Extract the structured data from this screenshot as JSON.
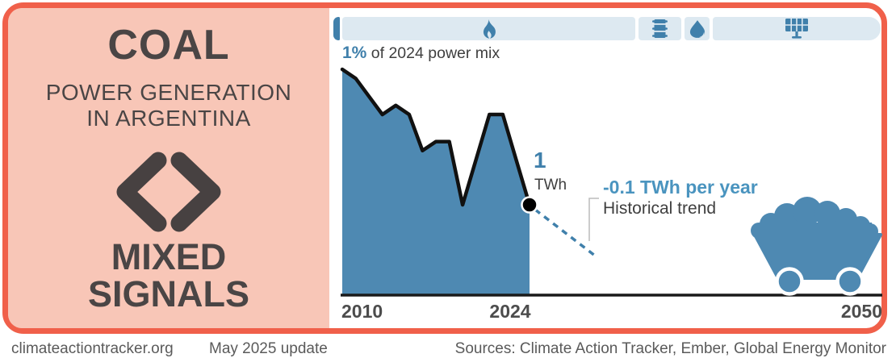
{
  "colors": {
    "brand-orange": "#f0604a",
    "panel-pink": "#f8c6b7",
    "chart-blue": "#4e89b2",
    "accent-blue": "#4080ab",
    "pill-blue": "#dde9f1",
    "trend-blue": "#4a94bf"
  },
  "panel": {
    "title": "COAL",
    "subtitle_line1": "POWER GENERATION",
    "subtitle_line2": "IN ARGENTINA",
    "rating_line1": "MIXED",
    "rating_line2": "SIGNALS"
  },
  "mix_bar": {
    "segments": [
      {
        "id": "coal",
        "icon": "none",
        "highlighted": true
      },
      {
        "id": "fossil-gas",
        "icon": "flame-icon",
        "highlighted": false
      },
      {
        "id": "oil",
        "icon": "oil-barrel-icon",
        "highlighted": false
      },
      {
        "id": "hydro",
        "icon": "water-drop-icon",
        "highlighted": false
      },
      {
        "id": "renewables",
        "icon": "solar-panel-icon",
        "highlighted": false
      }
    ]
  },
  "chart": {
    "share_value": "1%",
    "share_label": " of 2024 power mix",
    "point_value": "1",
    "point_unit": "TWh",
    "trend_rate": "-0.1 TWh per year",
    "trend_name": "Historical trend"
  },
  "chart_data": {
    "type": "area",
    "title": "Coal power generation in Argentina",
    "ylabel": "TWh",
    "x": [
      2010,
      2011,
      2012,
      2013,
      2014,
      2015,
      2016,
      2017,
      2018,
      2019,
      2020,
      2021,
      2022,
      2023,
      2024
    ],
    "values": [
      2.5,
      2.4,
      2.2,
      2.0,
      2.1,
      2.0,
      1.6,
      1.7,
      1.7,
      1.0,
      1.5,
      2.0,
      2.0,
      1.5,
      1.0
    ],
    "point_label": {
      "x": 2024,
      "value": 1,
      "unit": "TWh"
    },
    "share_of_power_mix_2024": "1%",
    "trend": {
      "rate_twh_per_year": -0.1,
      "label": "Historical trend"
    },
    "xlim": [
      2010,
      2050
    ],
    "ylim": [
      0,
      2.7
    ],
    "x_ticks": [
      "2010",
      "2024",
      "2050"
    ],
    "grid": false,
    "legend": false
  },
  "footer": {
    "site": "climateactiontracker.org",
    "update": "May 2025 update",
    "sources": "Sources: Climate Action Tracker, Ember, Global Energy Monitor"
  }
}
